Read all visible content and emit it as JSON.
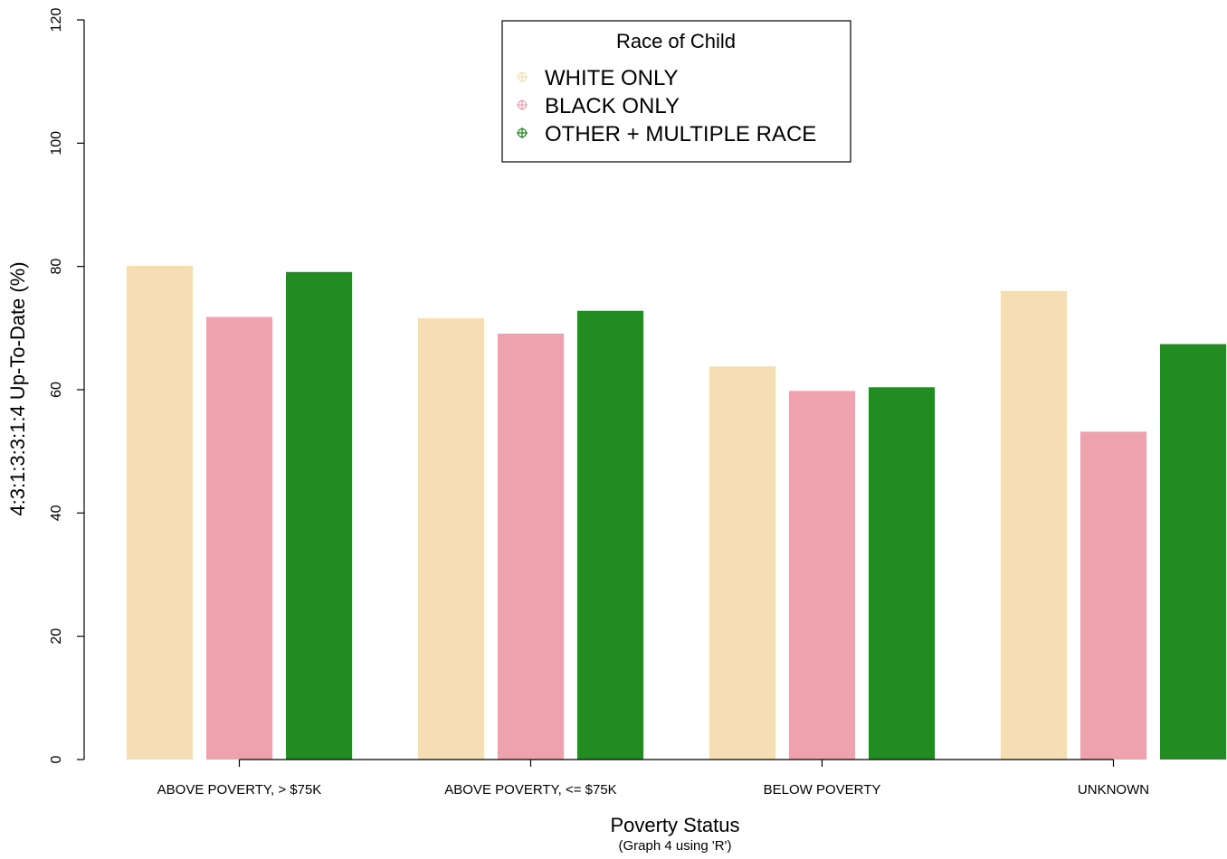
{
  "chart_data": {
    "type": "bar",
    "title": "",
    "xlabel": "Poverty Status",
    "subtitle": "(Graph 4 using 'R')",
    "ylabel": "4:3:1:3:3:1:4 Up-To-Date (%)",
    "ylim": [
      0,
      120
    ],
    "yticks": [
      "0",
      "20",
      "40",
      "60",
      "80",
      "100",
      "120"
    ],
    "categories": [
      "ABOVE POVERTY, > $75K",
      "ABOVE POVERTY, <= $75K",
      "BELOW POVERTY",
      "UNKNOWN"
    ],
    "legend": {
      "title": "Race of Child",
      "placement": "top-center"
    },
    "grid": false,
    "series": [
      {
        "name": "WHITE ONLY",
        "color": "#F5DEB3",
        "values": [
          80.1,
          71.6,
          63.8,
          76.0
        ]
      },
      {
        "name": "BLACK ONLY",
        "color": "#EEA2AD",
        "values": [
          71.8,
          69.1,
          59.8,
          53.2
        ]
      },
      {
        "name": "OTHER + MULTIPLE RACE",
        "color": "#228B22",
        "values": [
          79.1,
          72.8,
          60.4,
          67.4
        ]
      }
    ]
  }
}
